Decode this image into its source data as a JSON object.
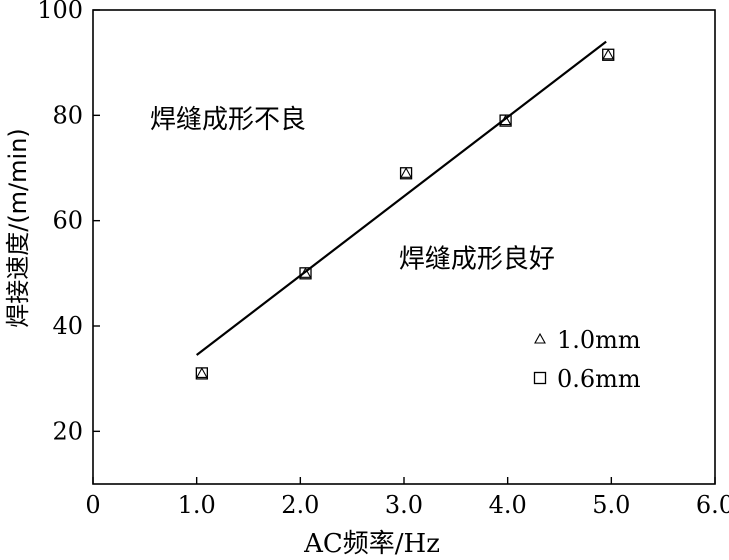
{
  "chart_data": {
    "type": "scatter",
    "xlabel": "AC频率/Hz",
    "ylabel": "焊接速度/(m/min)",
    "xlim": [
      0,
      6
    ],
    "ylim": [
      10,
      100
    ],
    "x_ticks": [
      "0",
      "1.0",
      "2.0",
      "3.0",
      "4.0",
      "5.0",
      "6.0"
    ],
    "y_ticks": [
      "20",
      "40",
      "60",
      "80",
      "100"
    ],
    "grid": false,
    "legend_position": "bottom-right",
    "series": [
      {
        "name": "1.0mm",
        "marker": "triangle",
        "x": [
          1.05,
          2.05,
          3.02,
          3.98,
          4.97
        ],
        "y": [
          31,
          50,
          69,
          79,
          91.5
        ]
      },
      {
        "name": "0.6mm",
        "marker": "square",
        "x": [
          1.05,
          2.05,
          3.02,
          3.98,
          4.97
        ],
        "y": [
          31,
          50,
          69,
          79,
          91.5
        ]
      }
    ],
    "fit_line": {
      "x": [
        1.0,
        4.95
      ],
      "y": [
        34.5,
        94
      ]
    },
    "annotations": [
      {
        "text": "焊缝成形不良",
        "x": 0.55,
        "y": 79.5
      },
      {
        "text": "焊缝成形良好",
        "x": 2.95,
        "y": 53
      }
    ]
  }
}
